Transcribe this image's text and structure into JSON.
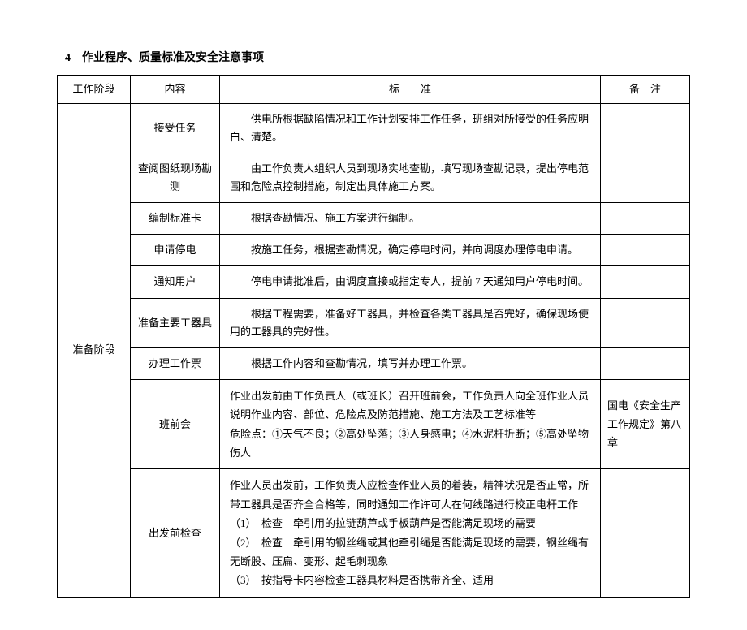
{
  "title": "4　作业程序、质量标准及安全注意事项",
  "headers": {
    "phase": "工作阶段",
    "content": "内容",
    "standard": "标　　准",
    "remark": "备　注"
  },
  "phase_label": "准备阶段",
  "rows": [
    {
      "content": "接受任务",
      "standard": "供电所根据缺陷情况和工作计划安排工作任务，班组对所接受的任务应明白、清楚。",
      "remark": ""
    },
    {
      "content": "查阅图纸现场勘测",
      "standard": "由工作负责人组织人员到现场实地查勘，填写现场查勘记录，提出停电范围和危险点控制措施，制定出具体施工方案。",
      "remark": ""
    },
    {
      "content": "编制标准卡",
      "standard": "根据查勘情况、施工方案进行编制。",
      "remark": ""
    },
    {
      "content": "申请停电",
      "standard": "按施工任务，根据查勘情况，确定停电时间，并向调度办理停电申请。",
      "remark": ""
    },
    {
      "content": "通知用户",
      "standard": "停电申请批准后，由调度直接或指定专人，提前 7 天通知用户停电时间。",
      "remark": ""
    },
    {
      "content": "准备主要工器具",
      "standard": "根据工程需要，准备好工器具，并检查各类工器具是否完好，确保现场使用的工器具的完好性。",
      "remark": ""
    },
    {
      "content": "办理工作票",
      "standard": "根据工作内容和查勘情况，填写并办理工作票。",
      "remark": ""
    },
    {
      "content": "班前会",
      "standard_lines": [
        "作业出发前由工作负责人（或班长）召开班前会，工作负责人向全班作业人员说明作业内容、部位、危险点及防范措施、施工方法及工艺标准等",
        "危险点：①天气不良；②高处坠落；③人身感电；④水泥杆折断；⑤高处坠物伤人"
      ],
      "remark": "国电《安全生产工作规定》第八章"
    },
    {
      "content": "出发前检查",
      "standard_lines": [
        "作业人员出发前，工作负责人应检查作业人员的着装，精神状况是否正常，所带工器具是否齐全合格等，同时通知工作许可人在何线路进行校正电杆工作",
        "（1）　检查　牵引用的拉链葫芦或手板葫芦是否能满足现场的需要",
        "（2）　检查　牵引用的钢丝绳或其他牵引绳是否能满足现场的需要，钢丝绳有无断股、压扁、变形、起毛刺现象",
        "（3）　按指导卡内容检查工器具材料是否携带齐全、适用"
      ],
      "remark": ""
    }
  ]
}
